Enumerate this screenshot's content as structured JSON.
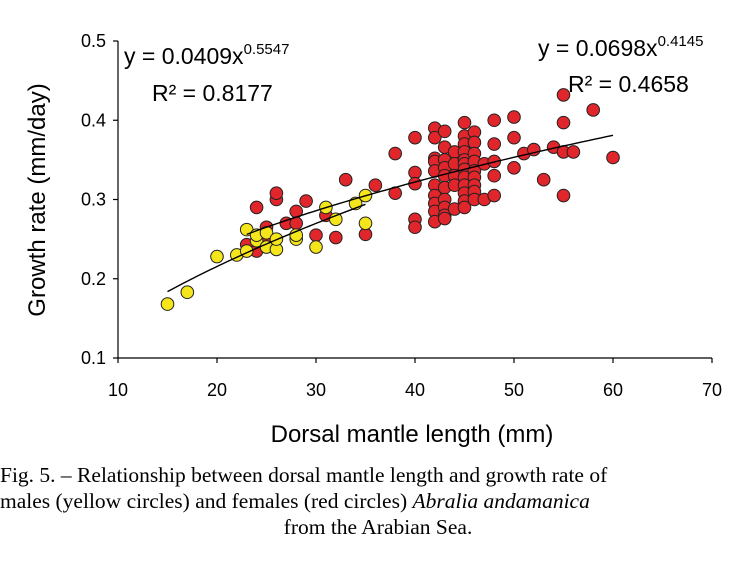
{
  "chart_data": {
    "type": "scatter",
    "xlabel": "Dorsal mantle length (mm)",
    "ylabel": "Growth rate (mm/day)",
    "xlim": [
      10,
      70
    ],
    "ylim": [
      0.1,
      0.5
    ],
    "xticks": [
      "10",
      "20",
      "30",
      "40",
      "50",
      "60",
      "70"
    ],
    "yticks": [
      "0.1",
      "0.2",
      "0.3",
      "0.4",
      "0.5"
    ],
    "grid": false,
    "legend": "none",
    "series": [
      {
        "color": "#f5e51b",
        "x": [
          15,
          17,
          20,
          22,
          23,
          23,
          24,
          24,
          25,
          25,
          26,
          26,
          28,
          28,
          30,
          31,
          32,
          34,
          35,
          35
        ],
        "y": [
          0.168,
          0.183,
          0.228,
          0.23,
          0.235,
          0.262,
          0.248,
          0.255,
          0.24,
          0.258,
          0.237,
          0.25,
          0.25,
          0.255,
          0.24,
          0.29,
          0.275,
          0.295,
          0.27,
          0.305
        ],
        "trendline": {
          "type": "power",
          "a": 0.0409,
          "b": 0.5547,
          "x_range": [
            15,
            35
          ]
        }
      },
      {
        "color": "#e0252b",
        "x": [
          23,
          24,
          24,
          25,
          25,
          26,
          26,
          27,
          28,
          28,
          29,
          30,
          31,
          32,
          33,
          35,
          36,
          38,
          38,
          40,
          40,
          40,
          40,
          40,
          42,
          42,
          42,
          42,
          42,
          42,
          42,
          42,
          42,
          42,
          43,
          43,
          43,
          43,
          43,
          43,
          43,
          43,
          43,
          43,
          44,
          44,
          44,
          44,
          44,
          45,
          45,
          45,
          45,
          45,
          45,
          45,
          45,
          45,
          45,
          45,
          45,
          46,
          46,
          46,
          46,
          46,
          46,
          46,
          46,
          46,
          47,
          47,
          48,
          48,
          48,
          48,
          48,
          50,
          50,
          50,
          51,
          52,
          53,
          54,
          55,
          55,
          55,
          55,
          56,
          58,
          60
        ],
        "y": [
          0.243,
          0.235,
          0.29,
          0.265,
          0.245,
          0.3,
          0.308,
          0.27,
          0.285,
          0.27,
          0.298,
          0.255,
          0.28,
          0.252,
          0.325,
          0.256,
          0.318,
          0.308,
          0.358,
          0.378,
          0.334,
          0.32,
          0.275,
          0.265,
          0.39,
          0.378,
          0.352,
          0.348,
          0.336,
          0.318,
          0.305,
          0.295,
          0.285,
          0.272,
          0.386,
          0.366,
          0.35,
          0.34,
          0.33,
          0.315,
          0.3,
          0.29,
          0.28,
          0.276,
          0.36,
          0.345,
          0.33,
          0.318,
          0.288,
          0.397,
          0.38,
          0.37,
          0.36,
          0.35,
          0.345,
          0.338,
          0.328,
          0.318,
          0.308,
          0.298,
          0.29,
          0.385,
          0.372,
          0.358,
          0.348,
          0.336,
          0.328,
          0.318,
          0.31,
          0.3,
          0.345,
          0.3,
          0.4,
          0.37,
          0.348,
          0.33,
          0.305,
          0.404,
          0.378,
          0.34,
          0.358,
          0.363,
          0.325,
          0.366,
          0.432,
          0.397,
          0.36,
          0.305,
          0.36,
          0.413,
          0.353
        ],
        "trendline": {
          "type": "power",
          "a": 0.0698,
          "b": 0.4145,
          "x_range": [
            23,
            60
          ]
        }
      }
    ],
    "annotations": {
      "left_eq_base": "y = 0.0409x",
      "left_eq_exp": "0.5547",
      "left_r2": "R² = 0.8177",
      "right_eq_base": "y = 0.0698x",
      "right_eq_exp": "0.4145",
      "right_r2": "R² = 0.4658"
    }
  },
  "caption": {
    "line1": "Fig. 5. – Relationship between dorsal mantle length and growth rate of",
    "line2_pre": "males (yellow circles) and females (red circles) ",
    "line2_species": "Abralia andamanica",
    "line3": "from the Arabian Sea."
  }
}
